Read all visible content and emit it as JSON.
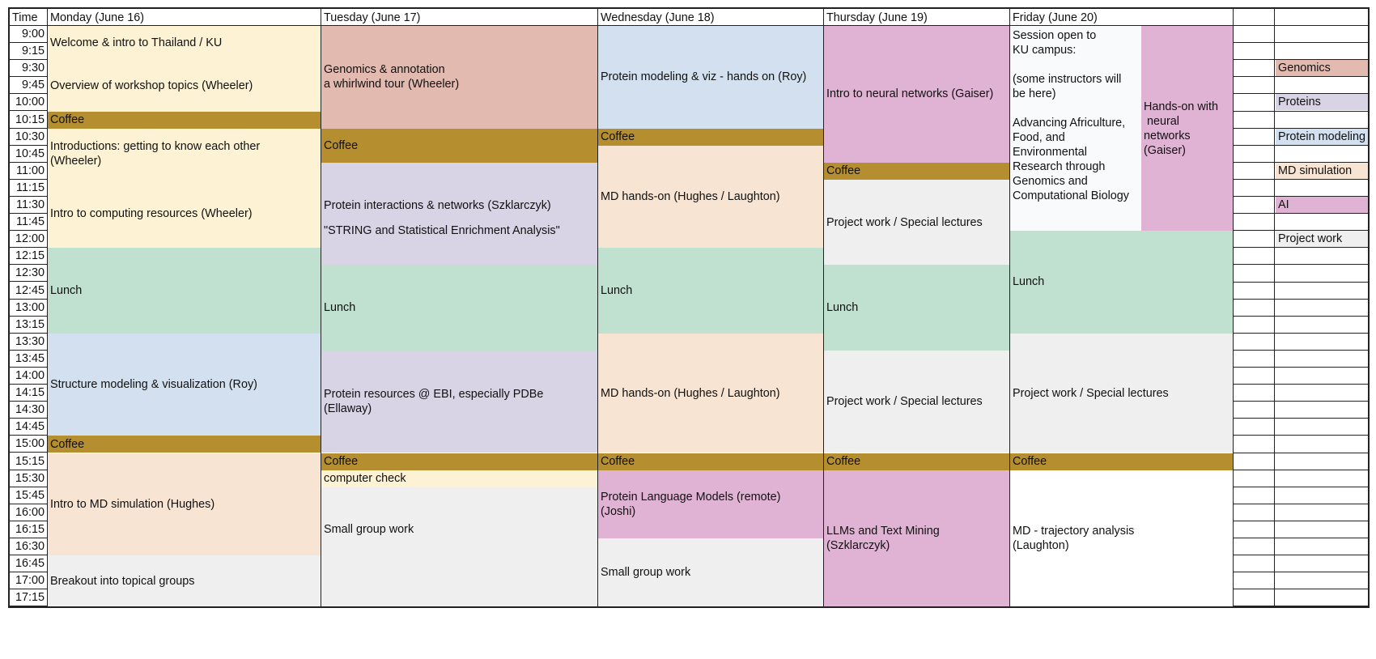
{
  "colors": {
    "cream": "#fdf2d3",
    "rose": "#e3bab0",
    "blue": "#d3e0ef",
    "lavender": "#d9d3e6",
    "peach": "#f7e4d2",
    "pink": "#e0b3d4",
    "gold": "#b58f2f",
    "green": "#c0e0d0",
    "grey": "#efefef",
    "white": "#ffffff",
    "lightwhite": "#f9fafc"
  },
  "header": {
    "time": "Time",
    "days": [
      "Monday (June 16)",
      "Tuesday (June 17)",
      "Wednesday (June 18)",
      "Thursday (June 19)",
      "Friday (June 20)"
    ]
  },
  "times": [
    "9:00",
    "9:15",
    "9:30",
    "9:45",
    "10:00",
    "10:15",
    "10:30",
    "10:45",
    "11:00",
    "11:15",
    "11:30",
    "11:45",
    "12:00",
    "12:15",
    "12:30",
    "12:45",
    "13:00",
    "13:15",
    "13:30",
    "13:45",
    "14:00",
    "14:15",
    "14:30",
    "14:45",
    "15:00",
    "15:15",
    "15:30",
    "15:45",
    "16:00",
    "16:15",
    "16:30",
    "16:45",
    "17:00",
    "17:15"
  ],
  "events": [
    {
      "col": "mon",
      "start": 0,
      "end": 5,
      "color": "cream",
      "texts": [
        {
          "t": "Welcome & intro to Thailand / KU",
          "at": 1
        },
        {
          "t": "Overview of workshop topics (Wheeler)",
          "at": 3.5
        }
      ]
    },
    {
      "col": "mon",
      "start": 5,
      "end": 6,
      "color": "gold",
      "label": "Coffee"
    },
    {
      "col": "mon",
      "start": 6,
      "end": 13,
      "color": "cream",
      "texts": [
        {
          "t": "Introductions: getting to know each other\n(Wheeler)",
          "at": 7.5
        },
        {
          "t": "Intro to computing resources (Wheeler)",
          "at": 11
        }
      ]
    },
    {
      "col": "mon",
      "start": 13,
      "end": 18,
      "color": "green",
      "label": "Lunch"
    },
    {
      "col": "mon",
      "start": 18,
      "end": 24,
      "color": "blue",
      "label": "Structure modeling & visualization (Roy)"
    },
    {
      "col": "mon",
      "start": 24,
      "end": 25,
      "color": "gold",
      "label": "Coffee"
    },
    {
      "col": "mon",
      "start": 25,
      "end": 31,
      "color": "peach",
      "label": "Intro to MD simulation (Hughes)"
    },
    {
      "col": "mon",
      "start": 31,
      "end": 34,
      "color": "grey",
      "label": "Breakout into topical groups"
    },
    {
      "col": "tue",
      "start": 0,
      "end": 6,
      "color": "rose",
      "label": "Genomics & annotation\na whirlwind tour (Wheeler)"
    },
    {
      "col": "tue",
      "start": 6,
      "end": 8,
      "color": "gold",
      "label": "Coffee"
    },
    {
      "col": "tue",
      "start": 8,
      "end": 14,
      "color": "lavender",
      "texts": [
        {
          "t": "Protein interactions & networks (Szklarczyk)",
          "at": 10.5
        },
        {
          "t": "\"STRING and Statistical Enrichment Analysis\"",
          "at": 12
        }
      ]
    },
    {
      "col": "tue",
      "start": 14,
      "end": 19,
      "color": "green",
      "label": "Lunch"
    },
    {
      "col": "tue",
      "start": 19,
      "end": 25,
      "color": "lavender",
      "label": "Protein resources @ EBI, especially PDBe\n(Ellaway)"
    },
    {
      "col": "tue",
      "start": 25,
      "end": 26,
      "color": "gold",
      "label": "Coffee"
    },
    {
      "col": "tue",
      "start": 26,
      "end": 27,
      "color": "cream",
      "label": "computer check"
    },
    {
      "col": "tue",
      "start": 27,
      "end": 34,
      "color": "grey",
      "texts": [
        {
          "t": "Small group work",
          "at": 29.5
        }
      ]
    },
    {
      "col": "wed",
      "start": 0,
      "end": 6,
      "color": "blue",
      "label": "Protein modeling & viz - hands on (Roy)"
    },
    {
      "col": "wed",
      "start": 6,
      "end": 7,
      "color": "gold",
      "label": "Coffee"
    },
    {
      "col": "wed",
      "start": 7,
      "end": 13,
      "color": "peach",
      "label": "MD hands-on (Hughes / Laughton)"
    },
    {
      "col": "wed",
      "start": 13,
      "end": 18,
      "color": "green",
      "label": "Lunch"
    },
    {
      "col": "wed",
      "start": 18,
      "end": 25,
      "color": "peach",
      "label": "MD hands-on (Hughes / Laughton)"
    },
    {
      "col": "wed",
      "start": 25,
      "end": 26,
      "color": "gold",
      "label": "Coffee"
    },
    {
      "col": "wed",
      "start": 26,
      "end": 30,
      "color": "pink",
      "label": "Protein Language Models (remote)\n(Joshi)"
    },
    {
      "col": "wed",
      "start": 30,
      "end": 34,
      "color": "grey",
      "label": "Small group work"
    },
    {
      "col": "thu",
      "start": 0,
      "end": 8,
      "color": "pink",
      "texts": [
        {
          "t": "Intro to neural networks (Gaiser)",
          "at": 4
        }
      ]
    },
    {
      "col": "thu",
      "start": 8,
      "end": 9,
      "color": "gold",
      "label": "Coffee"
    },
    {
      "col": "thu",
      "start": 9,
      "end": 14,
      "color": "grey",
      "label": "Project work / Special lectures"
    },
    {
      "col": "thu",
      "start": 14,
      "end": 19,
      "color": "green",
      "label": "Lunch"
    },
    {
      "col": "thu",
      "start": 19,
      "end": 25,
      "color": "grey",
      "label": "Project work / Special lectures"
    },
    {
      "col": "thu",
      "start": 25,
      "end": 26,
      "color": "gold",
      "label": "Coffee"
    },
    {
      "col": "thu",
      "start": 26,
      "end": 34,
      "color": "pink",
      "label": "LLMs and Text Mining\n(Szklarczyk)"
    },
    {
      "col": "fri",
      "start": 0,
      "end": 12,
      "color": "lightwhite",
      "top": true,
      "label": "Session open to\nKU campus:\n\n(some instructors will\nbe here)\n\nAdvancing Africulture,\nFood, and\nEnvironmental\nResearch through\nGenomics and\nComputational Biology"
    },
    {
      "col": "fri2",
      "start": 0,
      "end": 12,
      "color": "pink",
      "label": "Hands-on with\n neural\nnetworks\n(Gaiser)"
    },
    {
      "col": "friall",
      "start": 12,
      "end": 18,
      "color": "green",
      "label": "Lunch"
    },
    {
      "col": "friall",
      "start": 18,
      "end": 25,
      "color": "grey",
      "label": "Project work / Special lectures"
    },
    {
      "col": "friall",
      "start": 25,
      "end": 26,
      "color": "gold",
      "label": "Coffee"
    },
    {
      "col": "friall",
      "start": 26,
      "end": 34,
      "color": "white",
      "label": "MD - trajectory analysis\n(Laughton)"
    }
  ],
  "legend": [
    {
      "row": 2,
      "label": "Genomics",
      "color": "rose"
    },
    {
      "row": 4,
      "label": "Proteins",
      "color": "lavender"
    },
    {
      "row": 6,
      "label": "Protein modeling",
      "color": "blue"
    },
    {
      "row": 8,
      "label": "MD simulation",
      "color": "peach"
    },
    {
      "row": 10,
      "label": "AI",
      "color": "pink"
    },
    {
      "row": 12,
      "label": "Project work",
      "color": "grey"
    }
  ]
}
